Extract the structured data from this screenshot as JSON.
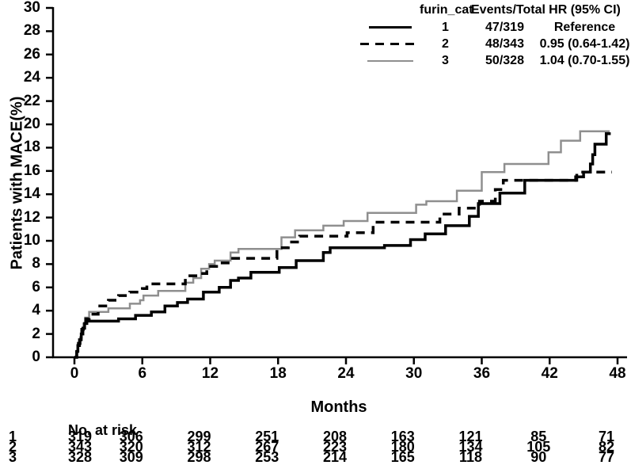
{
  "figure": {
    "ylabel": "Patients with MACE(%)",
    "xlabel": "Months"
  },
  "colors": {
    "black": "#000000",
    "gray": "#8f8f8f",
    "background": "#ffffff"
  },
  "chart_data": {
    "type": "line",
    "subtype": "kaplan-meier-step",
    "title": "",
    "xlabel": "Months",
    "ylabel": "Patients with MACE(%)",
    "xlim": [
      0,
      48
    ],
    "ylim": [
      0,
      30
    ],
    "x_ticks": [
      0,
      6,
      12,
      18,
      24,
      30,
      36,
      42,
      48
    ],
    "y_ticks": [
      0,
      2,
      4,
      6,
      8,
      10,
      12,
      14,
      16,
      18,
      20,
      22,
      24,
      26,
      28,
      30
    ],
    "grid": false,
    "legend_position": "top-right",
    "legend_table": {
      "headers": [
        "furin_cat",
        "Events/Total",
        "HR (95% CI)"
      ],
      "rows": [
        {
          "cat": "1",
          "events_total": "47/319",
          "hr": "Reference",
          "line": "solid",
          "color": "#000000"
        },
        {
          "cat": "2",
          "events_total": "48/343",
          "hr": "0.95 (0.64-1.42)",
          "line": "dashed",
          "color": "#000000"
        },
        {
          "cat": "3",
          "events_total": "50/328",
          "hr": "1.04 (0.70-1.55)",
          "line": "solid",
          "color": "#8f8f8f"
        }
      ]
    },
    "series": [
      {
        "name": "furin_cat 1",
        "color": "#000000",
        "dash": "solid",
        "line_width": 3.5,
        "points": [
          [
            0,
            0
          ],
          [
            0.2,
            0.5
          ],
          [
            0.3,
            1.0
          ],
          [
            0.45,
            1.5
          ],
          [
            0.6,
            2.0
          ],
          [
            0.75,
            2.5
          ],
          [
            0.9,
            2.9
          ],
          [
            1.1,
            3.1
          ],
          [
            3.9,
            3.3
          ],
          [
            5.4,
            3.6
          ],
          [
            6.8,
            3.9
          ],
          [
            8.0,
            4.4
          ],
          [
            9.1,
            4.7
          ],
          [
            10.0,
            5.0
          ],
          [
            11.4,
            5.6
          ],
          [
            12.8,
            6.0
          ],
          [
            13.8,
            6.6
          ],
          [
            14.5,
            6.8
          ],
          [
            15.6,
            7.3
          ],
          [
            18.1,
            7.7
          ],
          [
            19.6,
            8.3
          ],
          [
            22.0,
            9.0
          ],
          [
            22.6,
            9.4
          ],
          [
            27.4,
            9.6
          ],
          [
            29.7,
            10.1
          ],
          [
            31.0,
            10.6
          ],
          [
            32.8,
            11.3
          ],
          [
            34.9,
            12.1
          ],
          [
            35.7,
            13.2
          ],
          [
            37.6,
            14.1
          ],
          [
            39.8,
            15.2
          ],
          [
            44.3,
            15.5
          ],
          [
            45.0,
            15.9
          ],
          [
            45.6,
            16.6
          ],
          [
            45.8,
            17.4
          ],
          [
            46.0,
            18.3
          ],
          [
            47.0,
            19.2
          ],
          [
            47.4,
            19.2
          ]
        ]
      },
      {
        "name": "furin_cat 2",
        "color": "#000000",
        "dash": "dashed",
        "line_width": 3.5,
        "points": [
          [
            0,
            0
          ],
          [
            0.2,
            0.6
          ],
          [
            0.35,
            1.2
          ],
          [
            0.5,
            1.8
          ],
          [
            0.65,
            2.4
          ],
          [
            0.8,
            2.9
          ],
          [
            1.0,
            3.3
          ],
          [
            1.3,
            3.7
          ],
          [
            2.1,
            4.4
          ],
          [
            3.0,
            4.9
          ],
          [
            3.9,
            5.3
          ],
          [
            4.9,
            5.6
          ],
          [
            6.0,
            5.9
          ],
          [
            6.4,
            6.3
          ],
          [
            9.8,
            7.0
          ],
          [
            11.0,
            7.2
          ],
          [
            11.7,
            7.8
          ],
          [
            12.8,
            8.1
          ],
          [
            13.8,
            8.5
          ],
          [
            17.9,
            9.4
          ],
          [
            18.9,
            9.9
          ],
          [
            19.9,
            10.4
          ],
          [
            24.1,
            10.7
          ],
          [
            26.4,
            11.6
          ],
          [
            32.3,
            12.3
          ],
          [
            34.0,
            12.8
          ],
          [
            35.8,
            13.4
          ],
          [
            37.2,
            14.4
          ],
          [
            37.9,
            15.2
          ],
          [
            44.4,
            15.9
          ],
          [
            47.5,
            15.9
          ]
        ]
      },
      {
        "name": "furin_cat 3",
        "color": "#8f8f8f",
        "dash": "solid",
        "line_width": 2.5,
        "points": [
          [
            0,
            0
          ],
          [
            0.2,
            0.5
          ],
          [
            0.35,
            1.1
          ],
          [
            0.5,
            1.7
          ],
          [
            0.65,
            2.3
          ],
          [
            0.8,
            2.9
          ],
          [
            0.95,
            3.4
          ],
          [
            1.3,
            3.9
          ],
          [
            3.0,
            4.2
          ],
          [
            4.9,
            4.6
          ],
          [
            5.8,
            4.9
          ],
          [
            6.1,
            5.3
          ],
          [
            7.4,
            5.7
          ],
          [
            9.8,
            6.4
          ],
          [
            10.5,
            6.8
          ],
          [
            11.2,
            7.6
          ],
          [
            11.9,
            8.0
          ],
          [
            12.4,
            8.3
          ],
          [
            13.8,
            9.0
          ],
          [
            14.5,
            9.3
          ],
          [
            18.3,
            10.3
          ],
          [
            19.5,
            10.9
          ],
          [
            22.0,
            11.3
          ],
          [
            23.8,
            11.7
          ],
          [
            25.9,
            12.4
          ],
          [
            30.2,
            13.1
          ],
          [
            31.1,
            13.4
          ],
          [
            33.8,
            14.3
          ],
          [
            36.0,
            15.9
          ],
          [
            38.0,
            16.6
          ],
          [
            41.9,
            17.6
          ],
          [
            43.0,
            18.6
          ],
          [
            44.7,
            19.4
          ],
          [
            47.3,
            19.4
          ]
        ]
      }
    ],
    "no_at_risk": {
      "label": "No. at risk",
      "months": [
        0,
        6,
        12,
        18,
        24,
        30,
        36,
        42,
        48
      ],
      "rows": [
        {
          "cat": "1",
          "counts": [
            319,
            306,
            299,
            251,
            208,
            163,
            121,
            85,
            71
          ]
        },
        {
          "cat": "2",
          "counts": [
            343,
            320,
            312,
            267,
            223,
            180,
            134,
            105,
            82
          ]
        },
        {
          "cat": "3",
          "counts": [
            328,
            309,
            298,
            253,
            214,
            165,
            118,
            90,
            77
          ]
        }
      ]
    }
  }
}
